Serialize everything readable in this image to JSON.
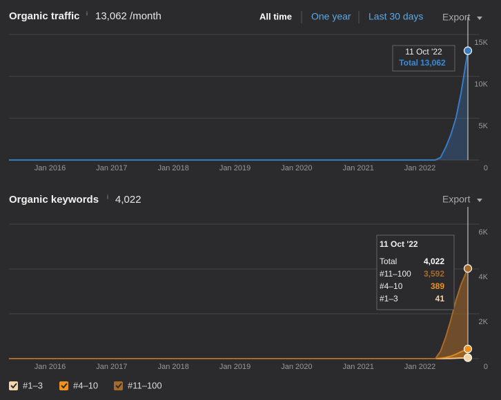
{
  "header": {
    "traffic_title": "Organic traffic",
    "info_mark": "i",
    "traffic_summary": "13,062 /month",
    "tabs": [
      "All time",
      "One year",
      "Last 30 days"
    ],
    "export": "Export",
    "keywords_title": "Organic keywords",
    "keywords_summary": "4,022"
  },
  "chart_data": [
    {
      "type": "area",
      "x": [
        "2015-05",
        "2022-04",
        "2022-05",
        "2022-06",
        "2022-07",
        "2022-08",
        "2022-09",
        "2022-10-11"
      ],
      "xlim": [
        "2015-05",
        "2022-11"
      ],
      "xticks": [
        {
          "value": "2016-01",
          "label": "Jan 2016"
        },
        {
          "value": "2017-01",
          "label": "Jan 2017"
        },
        {
          "value": "2018-01",
          "label": "Jan 2018"
        },
        {
          "value": "2019-01",
          "label": "Jan 2019"
        },
        {
          "value": "2020-01",
          "label": "Jan 2020"
        },
        {
          "value": "2021-01",
          "label": "Jan 2021"
        },
        {
          "value": "2022-01",
          "label": "Jan 2022"
        }
      ],
      "series": [
        {
          "name": "Total",
          "color": "#3a7cc4",
          "values": [
            0,
            0,
            300,
            1500,
            3000,
            5000,
            8000,
            13062
          ]
        }
      ],
      "ylim": [
        0,
        15000
      ],
      "yticks": [
        0,
        {
          "value": 5000,
          "label": "5K"
        },
        {
          "value": 10000,
          "label": "10K"
        },
        {
          "value": 15000,
          "label": "15K"
        }
      ],
      "grid": true,
      "tooltip": {
        "date": "11 Oct '22",
        "rows": [
          [
            "Total",
            "13,062"
          ]
        ]
      }
    },
    {
      "type": "stacked_area",
      "x": [
        "2015-05",
        "2022-04",
        "2022-05",
        "2022-06",
        "2022-07",
        "2022-08",
        "2022-09",
        "2022-10-11"
      ],
      "xlim": [
        "2015-05",
        "2022-11"
      ],
      "xticks": [
        {
          "value": "2016-01",
          "label": "Jan 2016"
        },
        {
          "value": "2017-01",
          "label": "Jan 2017"
        },
        {
          "value": "2018-01",
          "label": "Jan 2018"
        },
        {
          "value": "2019-01",
          "label": "Jan 2019"
        },
        {
          "value": "2020-01",
          "label": "Jan 2020"
        },
        {
          "value": "2021-01",
          "label": "Jan 2021"
        },
        {
          "value": "2022-01",
          "label": "Jan 2022"
        }
      ],
      "series": [
        {
          "name": "#1–3",
          "color": "#f5d6a8",
          "values": [
            0,
            0,
            2,
            5,
            10,
            20,
            30,
            41
          ]
        },
        {
          "name": "#4–10",
          "color": "#f0921e",
          "values": [
            0,
            0,
            20,
            50,
            100,
            180,
            280,
            389
          ]
        },
        {
          "name": "#11–100",
          "color": "#a86a2a",
          "values": [
            0,
            0,
            300,
            900,
            1600,
            2400,
            3000,
            3592
          ]
        }
      ],
      "ylim": [
        0,
        6000
      ],
      "yticks": [
        0,
        {
          "value": 2000,
          "label": "2K"
        },
        {
          "value": 4000,
          "label": "4K"
        },
        {
          "value": 6000,
          "label": "6K"
        }
      ],
      "grid": true,
      "tooltip": {
        "date": "11 Oct '22",
        "rows": [
          [
            "Total",
            "4,022"
          ],
          [
            "#11–100",
            "3,592"
          ],
          [
            "#4–10",
            "389"
          ],
          [
            "#1–3",
            "41"
          ]
        ]
      }
    }
  ]
}
